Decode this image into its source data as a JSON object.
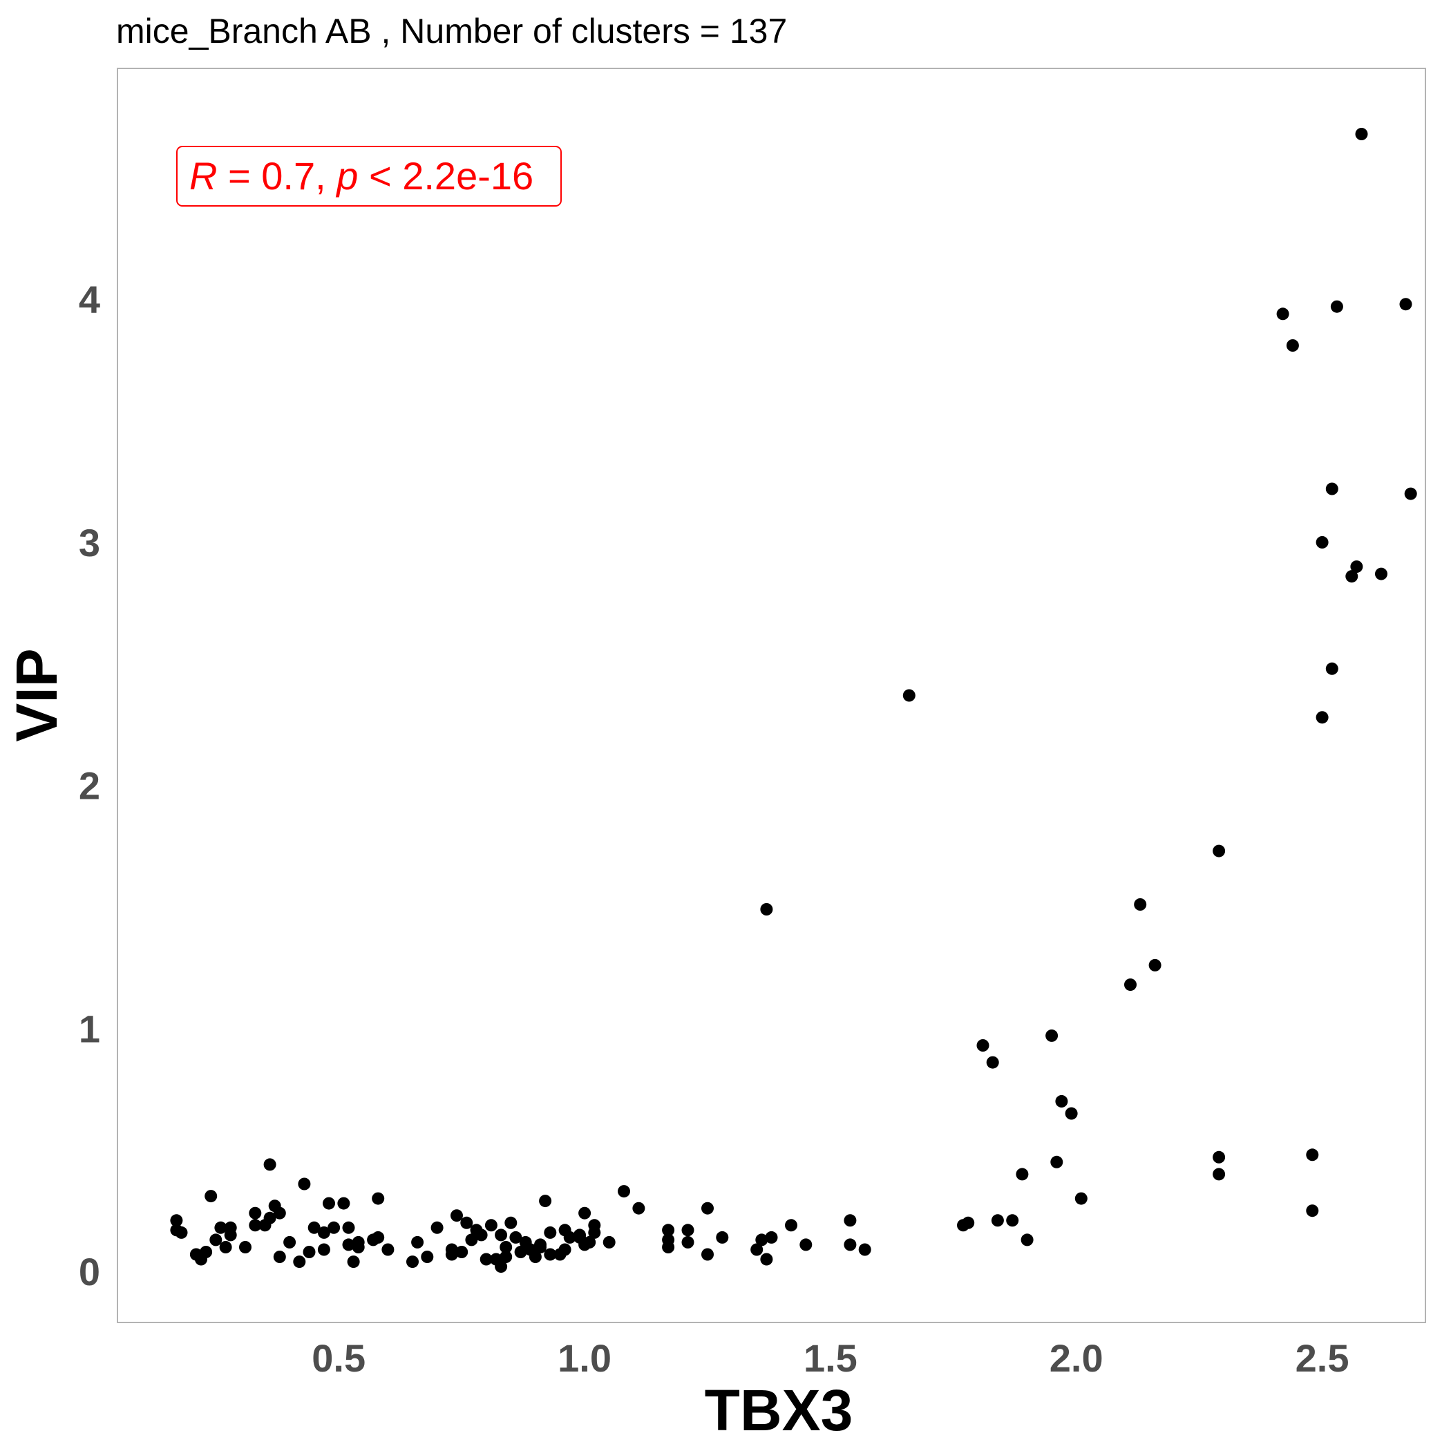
{
  "chart_data": {
    "type": "scatter",
    "title": "mice_Branch AB , Number of clusters =  137",
    "xlabel": "TBX3",
    "ylabel": "VIP",
    "xlim": [
      0.05,
      2.71
    ],
    "ylim": [
      -0.21,
      4.95
    ],
    "xticks": [
      0.5,
      1.0,
      1.5,
      2.0,
      2.5
    ],
    "xtick_labels": [
      "0.5",
      "1.0",
      "1.5",
      "2.0",
      "2.5"
    ],
    "yticks": [
      0,
      1,
      2,
      3,
      4
    ],
    "ytick_labels": [
      "0",
      "1",
      "2",
      "3",
      "4"
    ],
    "grid": false,
    "point_color": "#000000",
    "annotation": {
      "r_symbol": "R",
      "r_text": " = 0.7, ",
      "p_symbol": "p",
      "p_text": " < 2.2e-16",
      "color": "#ff0000"
    },
    "points": [
      [
        0.17,
        0.21
      ],
      [
        0.17,
        0.17
      ],
      [
        0.18,
        0.16
      ],
      [
        0.21,
        0.07
      ],
      [
        0.22,
        0.05
      ],
      [
        0.23,
        0.08
      ],
      [
        0.24,
        0.31
      ],
      [
        0.25,
        0.13
      ],
      [
        0.26,
        0.18
      ],
      [
        0.27,
        0.1
      ],
      [
        0.28,
        0.18
      ],
      [
        0.28,
        0.15
      ],
      [
        0.31,
        0.1
      ],
      [
        0.33,
        0.19
      ],
      [
        0.33,
        0.24
      ],
      [
        0.36,
        0.22
      ],
      [
        0.36,
        0.44
      ],
      [
        0.37,
        0.27
      ],
      [
        0.38,
        0.06
      ],
      [
        0.38,
        0.24
      ],
      [
        0.4,
        0.12
      ],
      [
        0.42,
        0.04
      ],
      [
        0.43,
        0.36
      ],
      [
        0.44,
        0.08
      ],
      [
        0.45,
        0.18
      ],
      [
        0.47,
        0.16
      ],
      [
        0.48,
        0.28
      ],
      [
        0.49,
        0.18
      ],
      [
        0.51,
        0.28
      ],
      [
        0.52,
        0.11
      ],
      [
        0.53,
        0.04
      ],
      [
        0.54,
        0.1
      ],
      [
        0.54,
        0.12
      ],
      [
        0.57,
        0.13
      ],
      [
        0.58,
        0.14
      ],
      [
        0.58,
        0.3
      ],
      [
        0.6,
        0.09
      ],
      [
        0.65,
        0.04
      ],
      [
        0.66,
        0.12
      ],
      [
        0.7,
        0.18
      ],
      [
        0.73,
        0.09
      ],
      [
        0.73,
        0.07
      ],
      [
        0.74,
        0.23
      ],
      [
        0.75,
        0.08
      ],
      [
        0.76,
        0.2
      ],
      [
        0.77,
        0.13
      ],
      [
        0.78,
        0.17
      ],
      [
        0.79,
        0.15
      ],
      [
        0.8,
        0.05
      ],
      [
        0.81,
        0.19
      ],
      [
        0.82,
        0.05
      ],
      [
        0.83,
        0.02
      ],
      [
        0.83,
        0.15
      ],
      [
        0.84,
        0.1
      ],
      [
        0.84,
        0.06
      ],
      [
        0.85,
        0.2
      ],
      [
        0.86,
        0.14
      ],
      [
        0.87,
        0.08
      ],
      [
        0.88,
        0.12
      ],
      [
        0.89,
        0.09
      ],
      [
        0.9,
        0.06
      ],
      [
        0.91,
        0.1
      ],
      [
        0.92,
        0.29
      ],
      [
        0.93,
        0.07
      ],
      [
        0.93,
        0.16
      ],
      [
        0.95,
        0.07
      ],
      [
        0.96,
        0.09
      ],
      [
        0.96,
        0.17
      ],
      [
        0.97,
        0.14
      ],
      [
        0.99,
        0.14
      ],
      [
        1.0,
        0.24
      ],
      [
        1.0,
        0.11
      ],
      [
        1.01,
        0.12
      ],
      [
        1.02,
        0.16
      ],
      [
        1.02,
        0.19
      ],
      [
        1.05,
        0.12
      ],
      [
        1.08,
        0.33
      ],
      [
        1.11,
        0.26
      ],
      [
        1.17,
        0.13
      ],
      [
        1.17,
        0.1
      ],
      [
        1.21,
        0.17
      ],
      [
        1.21,
        0.12
      ],
      [
        1.25,
        0.07
      ],
      [
        1.25,
        0.26
      ],
      [
        1.28,
        0.14
      ],
      [
        1.35,
        0.09
      ],
      [
        1.36,
        0.13
      ],
      [
        1.37,
        0.05
      ],
      [
        1.37,
        1.49
      ],
      [
        1.38,
        0.14
      ],
      [
        1.42,
        0.19
      ],
      [
        1.45,
        0.11
      ],
      [
        1.54,
        0.11
      ],
      [
        1.54,
        0.21
      ],
      [
        1.57,
        0.09
      ],
      [
        1.66,
        2.37
      ],
      [
        1.77,
        0.19
      ],
      [
        1.78,
        0.2
      ],
      [
        1.81,
        0.93
      ],
      [
        1.83,
        0.86
      ],
      [
        1.84,
        0.21
      ],
      [
        1.87,
        0.21
      ],
      [
        1.89,
        0.4
      ],
      [
        1.9,
        0.13
      ],
      [
        1.95,
        0.97
      ],
      [
        1.96,
        0.45
      ],
      [
        1.97,
        0.7
      ],
      [
        1.99,
        0.65
      ],
      [
        2.01,
        0.3
      ],
      [
        2.11,
        1.18
      ],
      [
        2.13,
        1.51
      ],
      [
        2.16,
        1.26
      ],
      [
        2.29,
        0.47
      ],
      [
        2.29,
        0.4
      ],
      [
        2.29,
        1.73
      ],
      [
        2.42,
        3.94
      ],
      [
        2.44,
        3.81
      ],
      [
        2.48,
        0.48
      ],
      [
        2.48,
        0.25
      ],
      [
        2.5,
        2.28
      ],
      [
        2.5,
        3.0
      ],
      [
        2.52,
        3.22
      ],
      [
        2.52,
        2.48
      ],
      [
        2.53,
        3.97
      ],
      [
        2.56,
        2.86
      ],
      [
        2.57,
        2.9
      ],
      [
        2.58,
        4.68
      ],
      [
        2.62,
        2.87
      ],
      [
        2.67,
        3.98
      ],
      [
        2.68,
        3.2
      ],
      [
        0.52,
        0.18
      ],
      [
        0.91,
        0.11
      ],
      [
        0.99,
        0.15
      ],
      [
        0.68,
        0.06
      ],
      [
        1.17,
        0.17
      ],
      [
        0.35,
        0.19
      ],
      [
        0.47,
        0.09
      ]
    ]
  }
}
